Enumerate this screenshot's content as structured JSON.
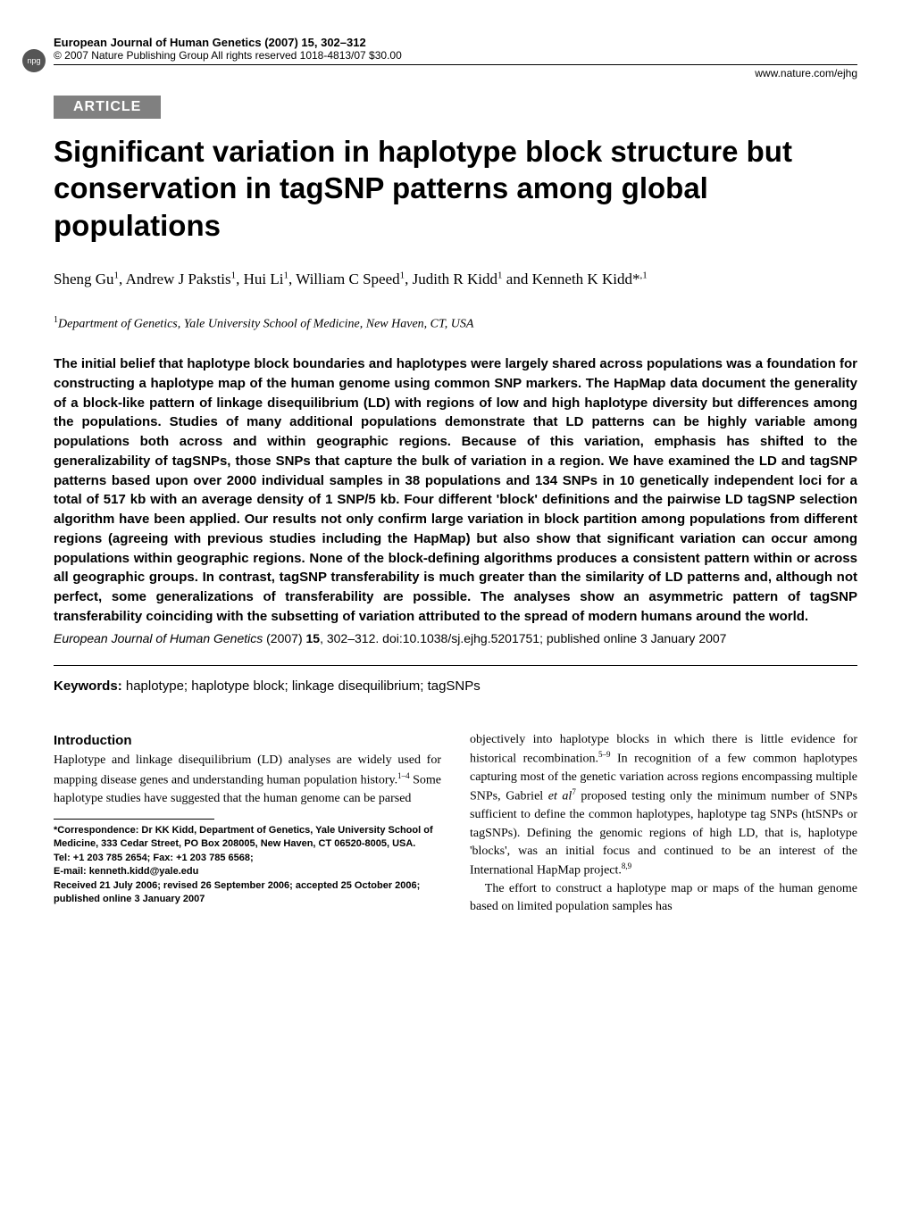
{
  "header": {
    "npg": "npg",
    "journal": "European Journal of Human Genetics (2007) 15, 302–312",
    "copyright": "© 2007 Nature Publishing Group   All rights reserved 1018-4813/07 $30.00",
    "url": "www.nature.com/ejhg"
  },
  "article_label": "ARTICLE",
  "title": "Significant variation in haplotype block structure but conservation in tagSNP patterns among global populations",
  "authors_html": "Sheng Gu<sup>1</sup>, Andrew J Pakstis<sup>1</sup>, Hui Li<sup>1</sup>, William C Speed<sup>1</sup>, Judith R Kidd<sup>1</sup> and Kenneth K Kidd*<sup>,1</sup>",
  "affiliation_html": "<sup>1</sup>Department of Genetics, Yale University School of Medicine, New Haven, CT, USA",
  "abstract": "The initial belief that haplotype block boundaries and haplotypes were largely shared across populations was a foundation for constructing a haplotype map of the human genome using common SNP markers. The HapMap data document the generality of a block-like pattern of linkage disequilibrium (LD) with regions of low and high haplotype diversity but differences among the populations. Studies of many additional populations demonstrate that LD patterns can be highly variable among populations both across and within geographic regions. Because of this variation, emphasis has shifted to the generalizability of tagSNPs, those SNPs that capture the bulk of variation in a region. We have examined the LD and tagSNP patterns based upon over 2000 individual samples in 38 populations and 134 SNPs in 10 genetically independent loci for a total of 517 kb with an average density of 1 SNP/5 kb. Four different 'block' definitions and the pairwise LD tagSNP selection algorithm have been applied. Our results not only confirm large variation in block partition among populations from different regions (agreeing with previous studies including the HapMap) but also show that significant variation can occur among populations within geographic regions. None of the block-defining algorithms produces a consistent pattern within or across all geographic groups. In contrast, tagSNP transferability is much greater than the similarity of LD patterns and, although not perfect, some generalizations of transferability are possible. The analyses show an asymmetric pattern of tagSNP transferability coinciding with the subsetting of variation attributed to the spread of modern humans around the world.",
  "citation": {
    "journal": "European Journal of Human Genetics",
    "year": "(2007)",
    "volume": "15",
    "pages": "302–312.",
    "doi": "doi:10.1038/sj.ejhg.5201751; published online 3 January 2007"
  },
  "keywords": {
    "label": "Keywords:",
    "text": "haplotype; haplotype block; linkage disequilibrium; tagSNPs"
  },
  "body": {
    "intro_head": "Introduction",
    "left_p1_html": "Haplotype and linkage disequilibrium (LD) analyses are widely used for mapping disease genes and understanding human population history.<sup>1–4</sup> Some haplotype studies have suggested that the human genome can be parsed",
    "right_p1_html": "objectively into haplotype blocks in which there is little evidence for historical recombination.<sup>5–9</sup> In recognition of a few common haplotypes capturing most of the genetic variation across regions encompassing multiple SNPs, Gabriel <span class=\"ital\">et al</span><sup>7</sup> proposed testing only the minimum number of SNPs sufficient to define the common haplotypes, haplotype tag SNPs (htSNPs or tagSNPs). Defining the genomic regions of high LD, that is, haplotype 'blocks', was an initial focus and continued to be an interest of the International HapMap project.<sup>8,9</sup>",
    "right_p2_html": "The effort to construct a haplotype map or maps of the human genome based on limited population samples has"
  },
  "footnote": {
    "correspondence": "*Correspondence: Dr KK Kidd, Department of Genetics, Yale University School of Medicine, 333 Cedar Street, PO Box 208005, New Haven, CT 06520-8005, USA.",
    "tel": "Tel: +1 203 785 2654; Fax: +1 203 785 6568;",
    "email": "E-mail: kenneth.kidd@yale.edu",
    "received": "Received 21 July 2006; revised 26 September 2006; accepted 25 October 2006; published online 3 January 2007"
  },
  "colors": {
    "badge_bg": "#808080",
    "badge_fg": "#ffffff",
    "text": "#000000",
    "bg": "#ffffff"
  }
}
